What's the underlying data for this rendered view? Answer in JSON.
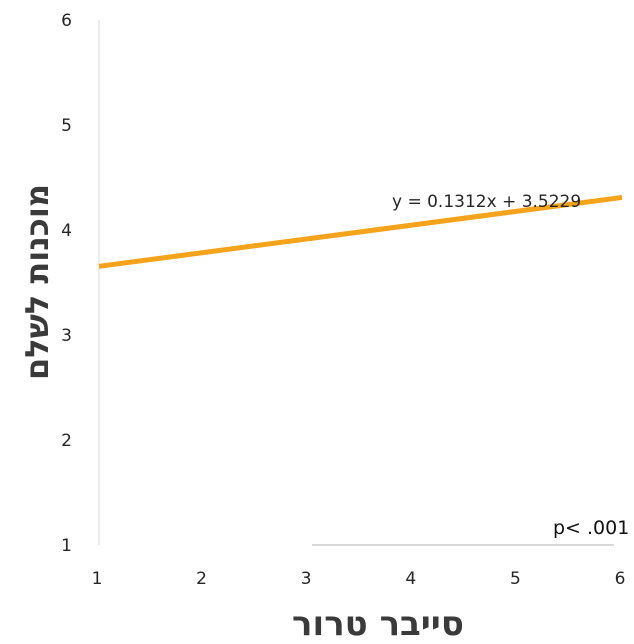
{
  "chart_data": {
    "type": "line",
    "xlabel": "סייבר טרור",
    "ylabel": "מוכנות לשלם",
    "xlim": [
      1,
      6
    ],
    "ylim": [
      1,
      6
    ],
    "x_ticks": [
      "1",
      "2",
      "3",
      "4",
      "5",
      "6"
    ],
    "y_ticks": [
      "1",
      "2",
      "3",
      "4",
      "5",
      "6"
    ],
    "grid": false,
    "series": [
      {
        "x": [
          1,
          6
        ],
        "y": [
          3.6541,
          4.3101
        ],
        "color": "#F5A31A"
      }
    ],
    "annotations": {
      "trendline_equation": "y = 0.1312x + 3.5229",
      "p_value": "p< .001"
    },
    "colors": {
      "line": "#F5A31A",
      "axis": "#d9d9d9"
    }
  }
}
